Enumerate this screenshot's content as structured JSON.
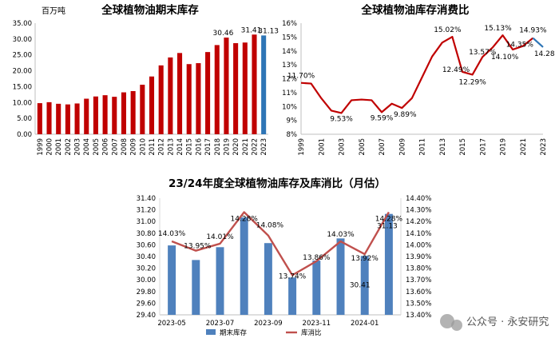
{
  "watermark": "公众号 · 永安研究",
  "chart_data": [
    {
      "type": "bar",
      "title": "全球植物油期末库存",
      "unit_label": "百万吨",
      "categories": [
        "1999",
        "2000",
        "2001",
        "2002",
        "2003",
        "2004",
        "2005",
        "2006",
        "2007",
        "2008",
        "2009",
        "2010",
        "2011",
        "2012",
        "2013",
        "2014",
        "2015",
        "2016",
        "2017",
        "2018",
        "2019",
        "2020",
        "2021",
        "2022",
        "2023"
      ],
      "values": [
        9.8,
        10.1,
        9.6,
        9.4,
        9.7,
        11.2,
        11.9,
        12.3,
        11.8,
        13.2,
        13.6,
        15.6,
        18.2,
        21.7,
        24.2,
        25.6,
        22.1,
        22.4,
        25.9,
        28.1,
        30.46,
        28.7,
        28.9,
        31.41,
        31.13
      ],
      "highlight": {
        "index": 24,
        "color": "#2e75b6"
      },
      "data_labels": [
        {
          "index": 20,
          "text": "30.46"
        },
        {
          "index": 23,
          "text": "31.41"
        },
        {
          "index": 24,
          "text": "31.13"
        }
      ],
      "yticks": [
        "0.00",
        "5.00",
        "10.00",
        "15.00",
        "20.00",
        "25.00",
        "30.00",
        "35.00"
      ],
      "ylim": [
        0,
        35
      ],
      "colors": {
        "bar": "#c00000"
      },
      "grid": false
    },
    {
      "type": "line",
      "title": "全球植物油库存消费比",
      "x": [
        "1999",
        "2000",
        "2001",
        "2002",
        "2003",
        "2004",
        "2005",
        "2006",
        "2007",
        "2008",
        "2009",
        "2010",
        "2011",
        "2012",
        "2013",
        "2014",
        "2015",
        "2016",
        "2017",
        "2018",
        "2019",
        "2020",
        "2021",
        "2022",
        "2023"
      ],
      "xticks": [
        "1999",
        "2001",
        "2003",
        "2005",
        "2007",
        "2009",
        "2011",
        "2013",
        "2015",
        "2017",
        "2019",
        "2021",
        "2023"
      ],
      "values": [
        11.7,
        11.65,
        10.6,
        9.7,
        9.53,
        10.45,
        10.5,
        10.45,
        9.59,
        10.2,
        9.89,
        10.6,
        12.1,
        13.6,
        14.6,
        15.02,
        12.49,
        12.29,
        13.57,
        14.25,
        15.13,
        14.1,
        14.35,
        14.93,
        14.28
      ],
      "forecast_from_index": 23,
      "data_labels": [
        {
          "index": 0,
          "text": "11.70%"
        },
        {
          "index": 4,
          "text": "9.53%"
        },
        {
          "index": 8,
          "text": "9.59%"
        },
        {
          "index": 10,
          "text": "9.89%"
        },
        {
          "index": 15,
          "text": "15.02%"
        },
        {
          "index": 16,
          "text": "12.49%"
        },
        {
          "index": 17,
          "text": "12.29%"
        },
        {
          "index": 18,
          "text": "13.57%"
        },
        {
          "index": 20,
          "text": "15.13%"
        },
        {
          "index": 21,
          "text": "14.10%"
        },
        {
          "index": 22,
          "text": "14.35%"
        },
        {
          "index": 23,
          "text": "14.93%"
        },
        {
          "index": 24,
          "text": "14.28%"
        }
      ],
      "yticks": [
        "8%",
        "9%",
        "10%",
        "11%",
        "12%",
        "13%",
        "14%",
        "15%",
        "16%"
      ],
      "ylim": [
        8,
        16
      ],
      "colors": {
        "line": "#c00000",
        "forecast": "#2e75b6"
      },
      "grid": false
    },
    {
      "type": "bar+line",
      "title": "23/24年度全球植物油库存及库消比（月估）",
      "categories": [
        "2023-05",
        "2023-06",
        "2023-07",
        "2023-08",
        "2023-09",
        "2023-10",
        "2023-11",
        "2023-12",
        "2024-01",
        "2024-02"
      ],
      "xticks": [
        "2023-05",
        "2023-07",
        "2023-09",
        "2023-11",
        "2024-01"
      ],
      "bar_series": {
        "name": "期末库存",
        "values": [
          30.59,
          30.34,
          30.56,
          31.07,
          30.63,
          30.04,
          30.33,
          30.71,
          30.41,
          31.13
        ],
        "color": "#4f81bd"
      },
      "line_series": {
        "name": "库消比",
        "values": [
          14.03,
          13.95,
          14.01,
          14.28,
          14.08,
          13.74,
          13.86,
          14.03,
          13.92,
          14.28
        ],
        "color": "#c0504d"
      },
      "data_labels": [
        {
          "kind": "line",
          "index": 0,
          "text": "14.03%"
        },
        {
          "kind": "line",
          "index": 1,
          "text": "13.95%"
        },
        {
          "kind": "line",
          "index": 2,
          "text": "14.01%"
        },
        {
          "kind": "line",
          "index": 3,
          "text": "14.28%"
        },
        {
          "kind": "line",
          "index": 4,
          "text": "14.08%"
        },
        {
          "kind": "line",
          "index": 5,
          "text": "13.74%"
        },
        {
          "kind": "line",
          "index": 6,
          "text": "13.86%"
        },
        {
          "kind": "line",
          "index": 7,
          "text": "14.03%"
        },
        {
          "kind": "line",
          "index": 8,
          "text": "13.92%"
        },
        {
          "kind": "line",
          "index": 9,
          "text": "14.28%"
        },
        {
          "kind": "bar",
          "index": 8,
          "text": "30.41"
        },
        {
          "kind": "bar",
          "index": 9,
          "text": "31.13"
        }
      ],
      "y_left_ticks": [
        "29.40",
        "29.60",
        "29.80",
        "30.00",
        "30.20",
        "30.40",
        "30.60",
        "30.80",
        "31.00",
        "31.20",
        "31.40"
      ],
      "y_left_lim": [
        29.4,
        31.4
      ],
      "y_right_ticks": [
        "13.40%",
        "13.50%",
        "13.60%",
        "13.70%",
        "13.80%",
        "13.90%",
        "14.00%",
        "14.10%",
        "14.20%",
        "14.30%",
        "14.40%"
      ],
      "y_right_lim": [
        13.4,
        14.4
      ],
      "legend": [
        "期末库存",
        "库消比"
      ],
      "legend_position": "bottom",
      "grid": false
    }
  ]
}
